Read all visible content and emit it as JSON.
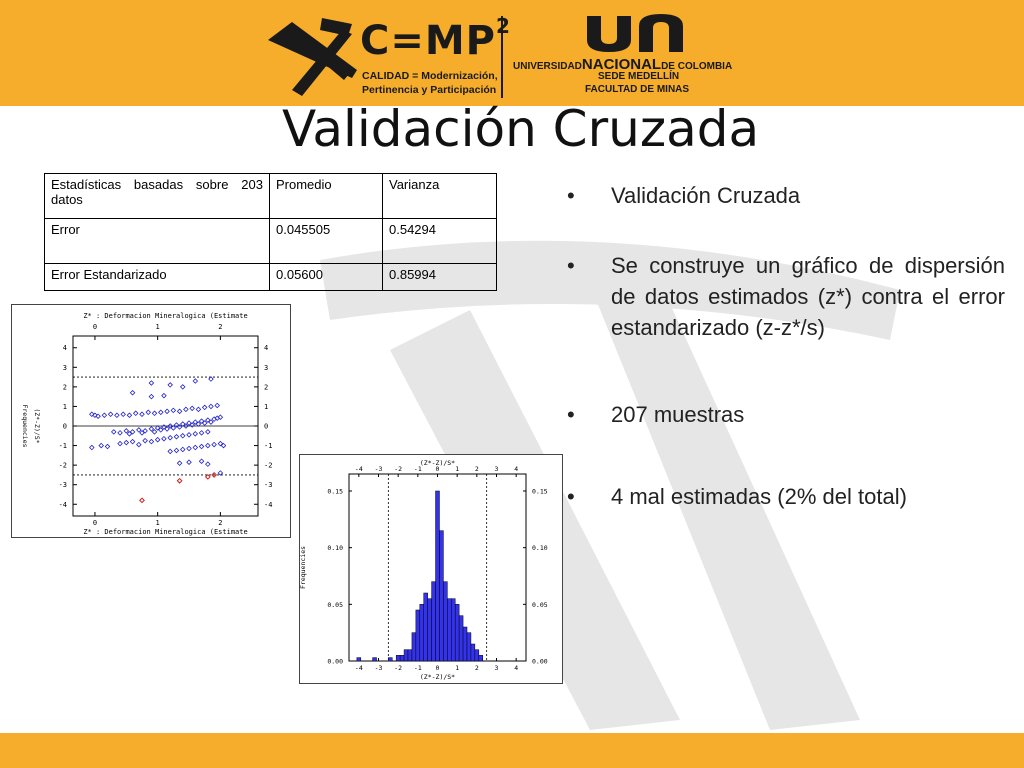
{
  "header": {
    "cmp_title": "C=MP",
    "cmp_superscript": "2",
    "cmp_subtitle_1": "CALIDAD = Modernización,",
    "cmp_subtitle_2": "Pertinencia y Participación",
    "un_line1_a": "UNIVERSIDAD",
    "un_line1_b": "NACIONAL",
    "un_line1_c": "DE COLOMBIA",
    "un_line2": "SEDE MEDELLÍN",
    "un_line3": "FACULTAD DE MINAS"
  },
  "title": "Validación Cruzada",
  "table": {
    "headers": [
      "Estadísticas basadas sobre 203 datos",
      "Promedio",
      "Varianza"
    ],
    "rows": [
      [
        "Error",
        "0.045505",
        "0.54294"
      ],
      [
        "Error Estandarizado",
        "0.05600",
        "0.85994"
      ]
    ]
  },
  "bullets": [
    "Validación Cruzada",
    "Se construye un gráfico de dispersión de datos estimados (z*) contra el error estandarizado (z-z*/s)",
    "207 muestras",
    "4 mal estimadas (2% del total)"
  ],
  "bullet_symbol": "•",
  "colors": {
    "brand": "#f5ad2b",
    "series": "#2222cc",
    "outlier": "#cc2222"
  },
  "chart_data": [
    {
      "type": "scatter",
      "title": "Z* : Deformacion Mineralogica (Estimate",
      "xlabel": "Z* : Deformacion Mineralogica (Estimate",
      "ylabel": "(Z*-Z)/S*",
      "side_label": "Frequencies",
      "x_ticks": [
        "0",
        "1",
        "2"
      ],
      "y_ticks": [
        "4",
        "3",
        "2",
        "1",
        "0",
        "-1",
        "-2",
        "-3",
        "-4"
      ],
      "xlim": [
        -0.35,
        2.6
      ],
      "ylim": [
        -4.6,
        4.6
      ],
      "reference_lines": [
        2.5,
        -2.5
      ],
      "grid": false,
      "points": [
        [
          -0.05,
          0.6
        ],
        [
          0.0,
          0.55
        ],
        [
          0.05,
          0.5
        ],
        [
          0.15,
          0.55
        ],
        [
          0.25,
          0.6
        ],
        [
          0.35,
          0.55
        ],
        [
          0.45,
          0.6
        ],
        [
          0.55,
          0.55
        ],
        [
          0.65,
          0.65
        ],
        [
          0.75,
          0.6
        ],
        [
          0.85,
          0.7
        ],
        [
          0.95,
          0.65
        ],
        [
          1.05,
          0.7
        ],
        [
          1.15,
          0.75
        ],
        [
          1.25,
          0.8
        ],
        [
          1.35,
          0.75
        ],
        [
          1.45,
          0.85
        ],
        [
          1.55,
          0.9
        ],
        [
          1.65,
          0.85
        ],
        [
          1.75,
          0.95
        ],
        [
          1.85,
          1.0
        ],
        [
          1.95,
          1.05
        ],
        [
          0.3,
          -0.3
        ],
        [
          0.4,
          -0.35
        ],
        [
          0.5,
          -0.25
        ],
        [
          0.55,
          -0.4
        ],
        [
          0.6,
          -0.3
        ],
        [
          0.7,
          -0.2
        ],
        [
          0.75,
          -0.35
        ],
        [
          0.8,
          -0.25
        ],
        [
          0.9,
          -0.15
        ],
        [
          0.95,
          -0.3
        ],
        [
          1.0,
          -0.1
        ],
        [
          1.05,
          -0.2
        ],
        [
          1.1,
          -0.05
        ],
        [
          1.15,
          -0.15
        ],
        [
          1.2,
          0.0
        ],
        [
          1.25,
          -0.1
        ],
        [
          1.3,
          0.05
        ],
        [
          1.35,
          -0.05
        ],
        [
          1.4,
          0.1
        ],
        [
          1.45,
          0.0
        ],
        [
          1.5,
          0.15
        ],
        [
          1.55,
          0.05
        ],
        [
          1.6,
          0.2
        ],
        [
          1.65,
          0.1
        ],
        [
          1.7,
          0.25
        ],
        [
          1.75,
          0.15
        ],
        [
          1.8,
          0.3
        ],
        [
          1.85,
          0.2
        ],
        [
          1.9,
          0.35
        ],
        [
          1.95,
          0.4
        ],
        [
          2.0,
          0.45
        ],
        [
          0.4,
          -0.9
        ],
        [
          0.5,
          -0.85
        ],
        [
          0.6,
          -0.8
        ],
        [
          0.7,
          -0.95
        ],
        [
          0.8,
          -0.75
        ],
        [
          0.9,
          -0.8
        ],
        [
          1.0,
          -0.7
        ],
        [
          1.1,
          -0.65
        ],
        [
          1.2,
          -0.6
        ],
        [
          1.3,
          -0.55
        ],
        [
          1.4,
          -0.5
        ],
        [
          1.5,
          -0.45
        ],
        [
          1.6,
          -0.4
        ],
        [
          1.7,
          -0.35
        ],
        [
          1.8,
          -0.3
        ],
        [
          1.2,
          -1.3
        ],
        [
          1.3,
          -1.25
        ],
        [
          1.4,
          -1.2
        ],
        [
          1.5,
          -1.15
        ],
        [
          1.6,
          -1.1
        ],
        [
          1.7,
          -1.05
        ],
        [
          1.8,
          -1.0
        ],
        [
          1.9,
          -0.95
        ],
        [
          2.0,
          -0.9
        ],
        [
          2.05,
          -1.0
        ],
        [
          -0.05,
          -1.1
        ],
        [
          0.1,
          -1.0
        ],
        [
          0.2,
          -1.05
        ],
        [
          1.35,
          -1.9
        ],
        [
          1.5,
          -1.85
        ],
        [
          1.7,
          -1.8
        ],
        [
          1.8,
          -1.95
        ],
        [
          2.0,
          -2.4
        ],
        [
          0.9,
          2.2
        ],
        [
          1.2,
          2.1
        ],
        [
          1.4,
          2.0
        ],
        [
          1.6,
          2.3
        ],
        [
          1.85,
          2.4
        ],
        [
          0.6,
          1.7
        ],
        [
          0.9,
          1.5
        ],
        [
          1.1,
          1.55
        ]
      ],
      "outliers": [
        [
          0.75,
          -3.8
        ],
        [
          1.35,
          -2.8
        ],
        [
          1.8,
          -2.6
        ],
        [
          1.9,
          -2.5
        ]
      ]
    },
    {
      "type": "bar",
      "title": "(Z*-Z)/S*",
      "xlabel": "(Z*-Z)/S*",
      "ylabel": "Frequencies",
      "x_ticks": [
        "-4",
        "-3",
        "-2",
        "-1",
        "0",
        "1",
        "2",
        "3",
        "4"
      ],
      "y_ticks": [
        "0.00",
        "0.05",
        "0.10",
        "0.15"
      ],
      "xlim": [
        -4.5,
        4.5
      ],
      "ylim": [
        0,
        0.165
      ],
      "reference_lines": [
        -2.5,
        2.5
      ],
      "grid": false,
      "bins": [
        {
          "x": -4.0,
          "value": 0.003
        },
        {
          "x": -3.2,
          "value": 0.003
        },
        {
          "x": -2.4,
          "value": 0.003
        },
        {
          "x": -2.0,
          "value": 0.005
        },
        {
          "x": -1.8,
          "value": 0.005
        },
        {
          "x": -1.6,
          "value": 0.01
        },
        {
          "x": -1.4,
          "value": 0.01
        },
        {
          "x": -1.2,
          "value": 0.025
        },
        {
          "x": -1.0,
          "value": 0.045
        },
        {
          "x": -0.8,
          "value": 0.05
        },
        {
          "x": -0.6,
          "value": 0.06
        },
        {
          "x": -0.4,
          "value": 0.055
        },
        {
          "x": -0.2,
          "value": 0.07
        },
        {
          "x": 0.0,
          "value": 0.15
        },
        {
          "x": 0.2,
          "value": 0.115
        },
        {
          "x": 0.4,
          "value": 0.07
        },
        {
          "x": 0.6,
          "value": 0.055
        },
        {
          "x": 0.8,
          "value": 0.055
        },
        {
          "x": 1.0,
          "value": 0.05
        },
        {
          "x": 1.2,
          "value": 0.04
        },
        {
          "x": 1.4,
          "value": 0.03
        },
        {
          "x": 1.6,
          "value": 0.025
        },
        {
          "x": 1.8,
          "value": 0.015
        },
        {
          "x": 2.0,
          "value": 0.01
        },
        {
          "x": 2.2,
          "value": 0.005
        }
      ]
    }
  ]
}
